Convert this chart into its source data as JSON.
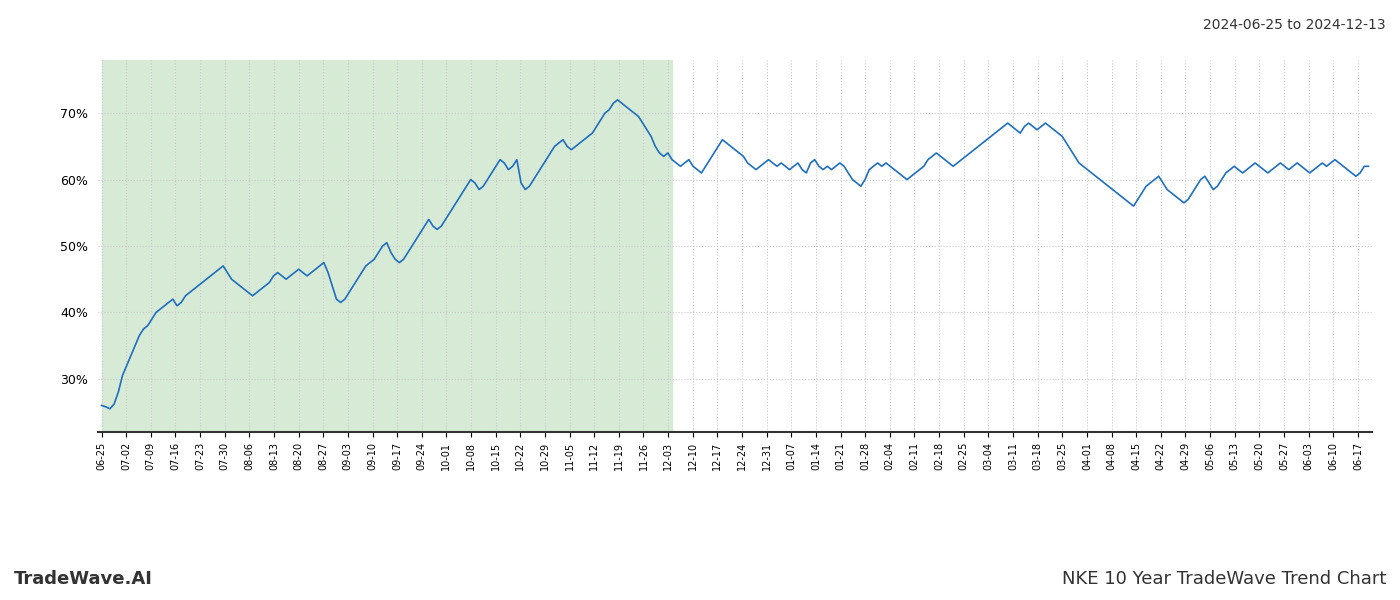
{
  "title_top_right": "2024-06-25 to 2024-12-13",
  "title_bottom_left": "TradeWave.AI",
  "title_bottom_right": "NKE 10 Year TradeWave Trend Chart",
  "background_color": "#ffffff",
  "line_color": "#1f6fbf",
  "shaded_color": "#d6ead6",
  "shaded_start": "2024-06-25",
  "shaded_end": "2024-12-04",
  "y_ticks": [
    30,
    40,
    50,
    60,
    70
  ],
  "ylim_min": 22,
  "ylim_max": 78,
  "x_start": "2024-06-25",
  "x_end": "2025-06-20",
  "x_tick_interval_days": 7,
  "grid_color": "#cccccc",
  "grid_linestyle": ":",
  "series": [
    26.0,
    25.8,
    25.5,
    26.2,
    28.0,
    30.5,
    32.0,
    33.5,
    35.0,
    36.5,
    37.5,
    38.0,
    39.0,
    40.0,
    40.5,
    41.0,
    41.5,
    42.0,
    41.0,
    41.5,
    42.5,
    43.0,
    43.5,
    44.0,
    44.5,
    45.0,
    45.5,
    46.0,
    46.5,
    47.0,
    46.0,
    45.0,
    44.5,
    44.0,
    43.5,
    43.0,
    42.5,
    43.0,
    43.5,
    44.0,
    44.5,
    45.5,
    46.0,
    45.5,
    45.0,
    45.5,
    46.0,
    46.5,
    46.0,
    45.5,
    46.0,
    46.5,
    47.0,
    47.5,
    46.0,
    44.0,
    42.0,
    41.5,
    42.0,
    43.0,
    44.0,
    45.0,
    46.0,
    47.0,
    47.5,
    48.0,
    49.0,
    50.0,
    50.5,
    49.0,
    48.0,
    47.5,
    48.0,
    49.0,
    50.0,
    51.0,
    52.0,
    53.0,
    54.0,
    53.0,
    52.5,
    53.0,
    54.0,
    55.0,
    56.0,
    57.0,
    58.0,
    59.0,
    60.0,
    59.5,
    58.5,
    59.0,
    60.0,
    61.0,
    62.0,
    63.0,
    62.5,
    61.5,
    62.0,
    63.0,
    59.5,
    58.5,
    59.0,
    60.0,
    61.0,
    62.0,
    63.0,
    64.0,
    65.0,
    65.5,
    66.0,
    65.0,
    64.5,
    65.0,
    65.5,
    66.0,
    66.5,
    67.0,
    68.0,
    69.0,
    70.0,
    70.5,
    71.5,
    72.0,
    71.5,
    71.0,
    70.5,
    70.0,
    69.5,
    68.5,
    67.5,
    66.5,
    65.0,
    64.0,
    63.5,
    64.0,
    63.0,
    62.5,
    62.0,
    62.5,
    63.0,
    62.0,
    61.5,
    61.0,
    62.0,
    63.0,
    64.0,
    65.0,
    66.0,
    65.5,
    65.0,
    64.5,
    64.0,
    63.5,
    62.5,
    62.0,
    61.5,
    62.0,
    62.5,
    63.0,
    62.5,
    62.0,
    62.5,
    62.0,
    61.5,
    62.0,
    62.5,
    61.5,
    61.0,
    62.5,
    63.0,
    62.0,
    61.5,
    62.0,
    61.5,
    62.0,
    62.5,
    62.0,
    61.0,
    60.0,
    59.5,
    59.0,
    60.0,
    61.5,
    62.0,
    62.5,
    62.0,
    62.5,
    62.0,
    61.5,
    61.0,
    60.5,
    60.0,
    60.5,
    61.0,
    61.5,
    62.0,
    63.0,
    63.5,
    64.0,
    63.5,
    63.0,
    62.5,
    62.0,
    62.5,
    63.0,
    63.5,
    64.0,
    64.5,
    65.0,
    65.5,
    66.0,
    66.5,
    67.0,
    67.5,
    68.0,
    68.5,
    68.0,
    67.5,
    67.0,
    68.0,
    68.5,
    68.0,
    67.5,
    68.0,
    68.5,
    68.0,
    67.5,
    67.0,
    66.5,
    65.5,
    64.5,
    63.5,
    62.5,
    62.0,
    61.5,
    61.0,
    60.5,
    60.0,
    59.5,
    59.0,
    58.5,
    58.0,
    57.5,
    57.0,
    56.5,
    56.0,
    57.0,
    58.0,
    59.0,
    59.5,
    60.0,
    60.5,
    59.5,
    58.5,
    58.0,
    57.5,
    57.0,
    56.5,
    57.0,
    58.0,
    59.0,
    60.0,
    60.5,
    59.5,
    58.5,
    59.0,
    60.0,
    61.0,
    61.5,
    62.0,
    61.5,
    61.0,
    61.5,
    62.0,
    62.5,
    62.0,
    61.5,
    61.0,
    61.5,
    62.0,
    62.5,
    62.0,
    61.5,
    62.0,
    62.5,
    62.0,
    61.5,
    61.0,
    61.5,
    62.0,
    62.5,
    62.0,
    62.5,
    63.0,
    62.5,
    62.0,
    61.5,
    61.0,
    60.5,
    61.0,
    62.0,
    62.0
  ]
}
